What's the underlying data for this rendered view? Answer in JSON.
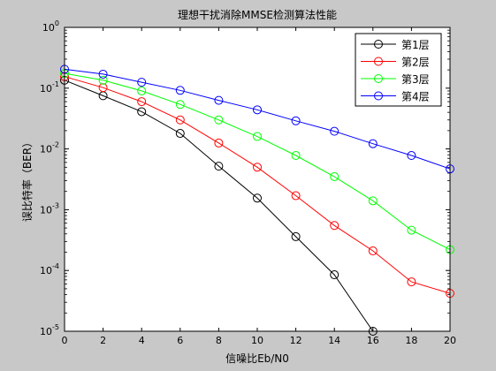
{
  "chart_data": {
    "type": "line",
    "title": "理想干扰消除MMSE检测算法性能",
    "xlabel": "信噪比Eb/N0",
    "ylabel": "误比特率（BER）",
    "xlim": [
      0,
      20
    ],
    "ylim": [
      1e-05,
      1
    ],
    "yscale": "log",
    "grid": false,
    "legend_position": "top-right",
    "x_ticks": [
      0,
      2,
      4,
      6,
      8,
      10,
      12,
      14,
      16,
      18,
      20
    ],
    "y_tick_exponents": [
      0,
      -1,
      -2,
      -3,
      -4,
      -5
    ],
    "x": [
      0,
      2,
      4,
      6,
      8,
      10,
      12,
      14,
      16,
      18,
      20
    ],
    "series": [
      {
        "name": "第1层",
        "color": "#000000",
        "marker": "circle",
        "values": [
          0.135,
          0.075,
          0.041,
          0.018,
          0.0052,
          0.00155,
          0.00036,
          8.5e-05,
          1e-05,
          null,
          null
        ]
      },
      {
        "name": "第2层",
        "color": "#ff0000",
        "marker": "circle",
        "values": [
          0.155,
          0.102,
          0.06,
          0.03,
          0.0125,
          0.005,
          0.0017,
          0.00055,
          0.00021,
          6.5e-05,
          4.2e-05
        ]
      },
      {
        "name": "第3层",
        "color": "#00ff00",
        "marker": "circle",
        "values": [
          0.175,
          0.135,
          0.09,
          0.054,
          0.03,
          0.016,
          0.0078,
          0.0035,
          0.0014,
          0.00046,
          0.00022
        ]
      },
      {
        "name": "第4层",
        "color": "#0000ff",
        "marker": "circle",
        "values": [
          0.205,
          0.17,
          0.125,
          0.092,
          0.063,
          0.044,
          0.029,
          0.0195,
          0.0122,
          0.0078,
          0.0047
        ]
      }
    ]
  }
}
